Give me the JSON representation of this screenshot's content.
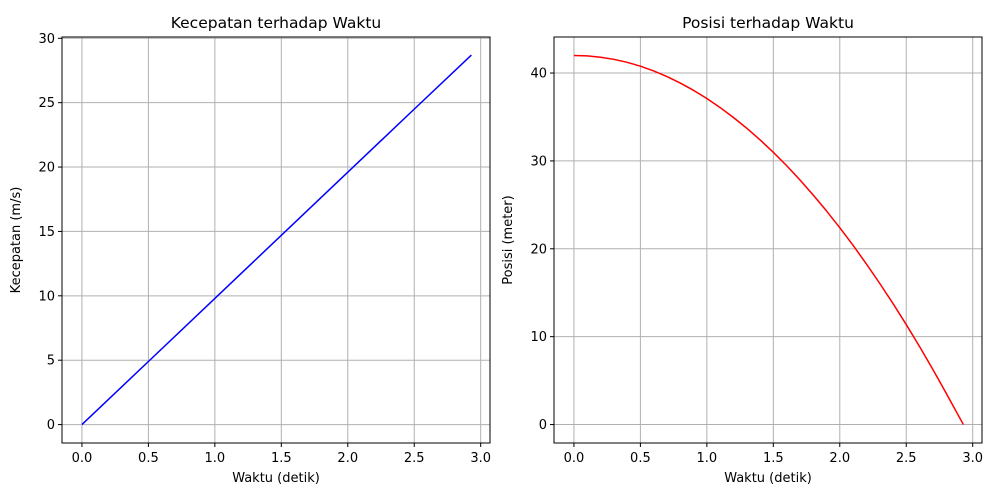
{
  "chart_data": [
    {
      "type": "line",
      "title": "Kecepatan terhadap Waktu",
      "xlabel": "Waktu (detik)",
      "ylabel": "Kecepatan (m/s)",
      "xlim": [
        -0.15,
        3.07
      ],
      "ylim": [
        -1.43,
        30.1
      ],
      "grid": true,
      "legend": "none",
      "xticks": [
        0.0,
        0.5,
        1.0,
        1.5,
        2.0,
        2.5,
        3.0
      ],
      "xtick_labels": [
        "0.0",
        "0.5",
        "1.0",
        "1.5",
        "2.0",
        "2.5",
        "3.0"
      ],
      "yticks": [
        0,
        5,
        10,
        15,
        20,
        25,
        30
      ],
      "ytick_labels": [
        "0",
        "5",
        "10",
        "15",
        "20",
        "25",
        "30"
      ],
      "series": [
        {
          "color": "#0000ff",
          "x": [
            0.0,
            0.5,
            1.0,
            1.5,
            2.0,
            2.5,
            2.93
          ],
          "y": [
            0.0,
            4.9,
            9.8,
            14.7,
            19.6,
            24.5,
            28.7
          ]
        }
      ]
    },
    {
      "type": "line",
      "title": "Posisi terhadap Waktu",
      "xlabel": "Waktu (detik)",
      "ylabel": "Posisi (meter)",
      "xlim": [
        -0.15,
        3.07
      ],
      "ylim": [
        -2.1,
        44.1
      ],
      "grid": true,
      "legend": "none",
      "xticks": [
        0.0,
        0.5,
        1.0,
        1.5,
        2.0,
        2.5,
        3.0
      ],
      "xtick_labels": [
        "0.0",
        "0.5",
        "1.0",
        "1.5",
        "2.0",
        "2.5",
        "3.0"
      ],
      "yticks": [
        0,
        10,
        20,
        30,
        40
      ],
      "ytick_labels": [
        "0",
        "10",
        "20",
        "30",
        "40"
      ],
      "series": [
        {
          "color": "#ff0000",
          "x": [
            0.0,
            0.1,
            0.2,
            0.3,
            0.4,
            0.5,
            0.6,
            0.7,
            0.8,
            0.9,
            1.0,
            1.1,
            1.2,
            1.3,
            1.4,
            1.5,
            1.6,
            1.7,
            1.8,
            1.9,
            2.0,
            2.1,
            2.2,
            2.3,
            2.4,
            2.5,
            2.6,
            2.7,
            2.8,
            2.93
          ],
          "y": [
            42.0,
            41.95,
            41.8,
            41.56,
            41.22,
            40.78,
            40.24,
            39.6,
            38.86,
            38.03,
            37.1,
            36.07,
            34.94,
            33.72,
            32.4,
            30.98,
            29.46,
            27.84,
            26.12,
            24.31,
            22.4,
            20.39,
            18.28,
            16.08,
            13.78,
            11.38,
            8.88,
            6.28,
            3.58,
            0.0
          ]
        }
      ]
    }
  ]
}
